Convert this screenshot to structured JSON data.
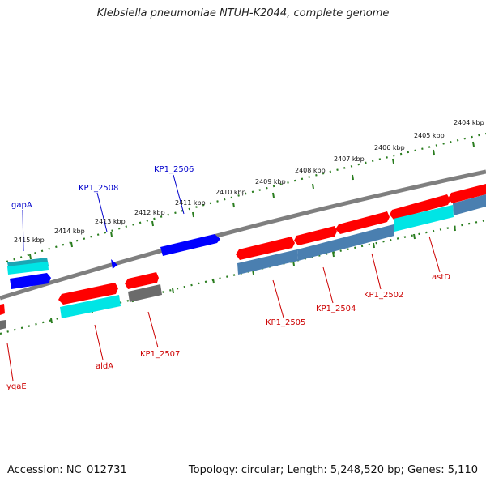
{
  "title": "Klebsiella pneumoniae NTUH-K2044, complete genome",
  "footer": {
    "accession": "Accession: NC_012731",
    "summary": "Topology: circular; Length: 5,248,520 bp; Genes: 5,110"
  },
  "colors": {
    "backbone": "#808080",
    "tick": "#2a7d1f",
    "forward_label": "#0000cc",
    "reverse_label": "#cc0000",
    "red": "#ff0000",
    "blue": "#0000ff",
    "cyan": "#00e5e5",
    "teal": "#1aa7b5",
    "steel": "#4a7fb0",
    "gray": "#6b6b6b"
  },
  "kbp_labels": [
    "2404 kbp",
    "2405 kbp",
    "2406 kbp",
    "2407 kbp",
    "2408 kbp",
    "2409 kbp",
    "2410 kbp",
    "2411 kbp",
    "2412 kbp",
    "2413 kbp",
    "2414 kbp",
    "2415 kbp"
  ],
  "gene_labels": {
    "gapA": "gapA",
    "KP1_2508": "KP1_2508",
    "KP1_2506": "KP1_2506",
    "yqaE": "yqaE",
    "aldA": "aldA",
    "KP1_2507": "KP1_2507",
    "KP1_2505": "KP1_2505",
    "KP1_2504": "KP1_2504",
    "KP1_2502": "KP1_2502",
    "astD": "astD"
  }
}
